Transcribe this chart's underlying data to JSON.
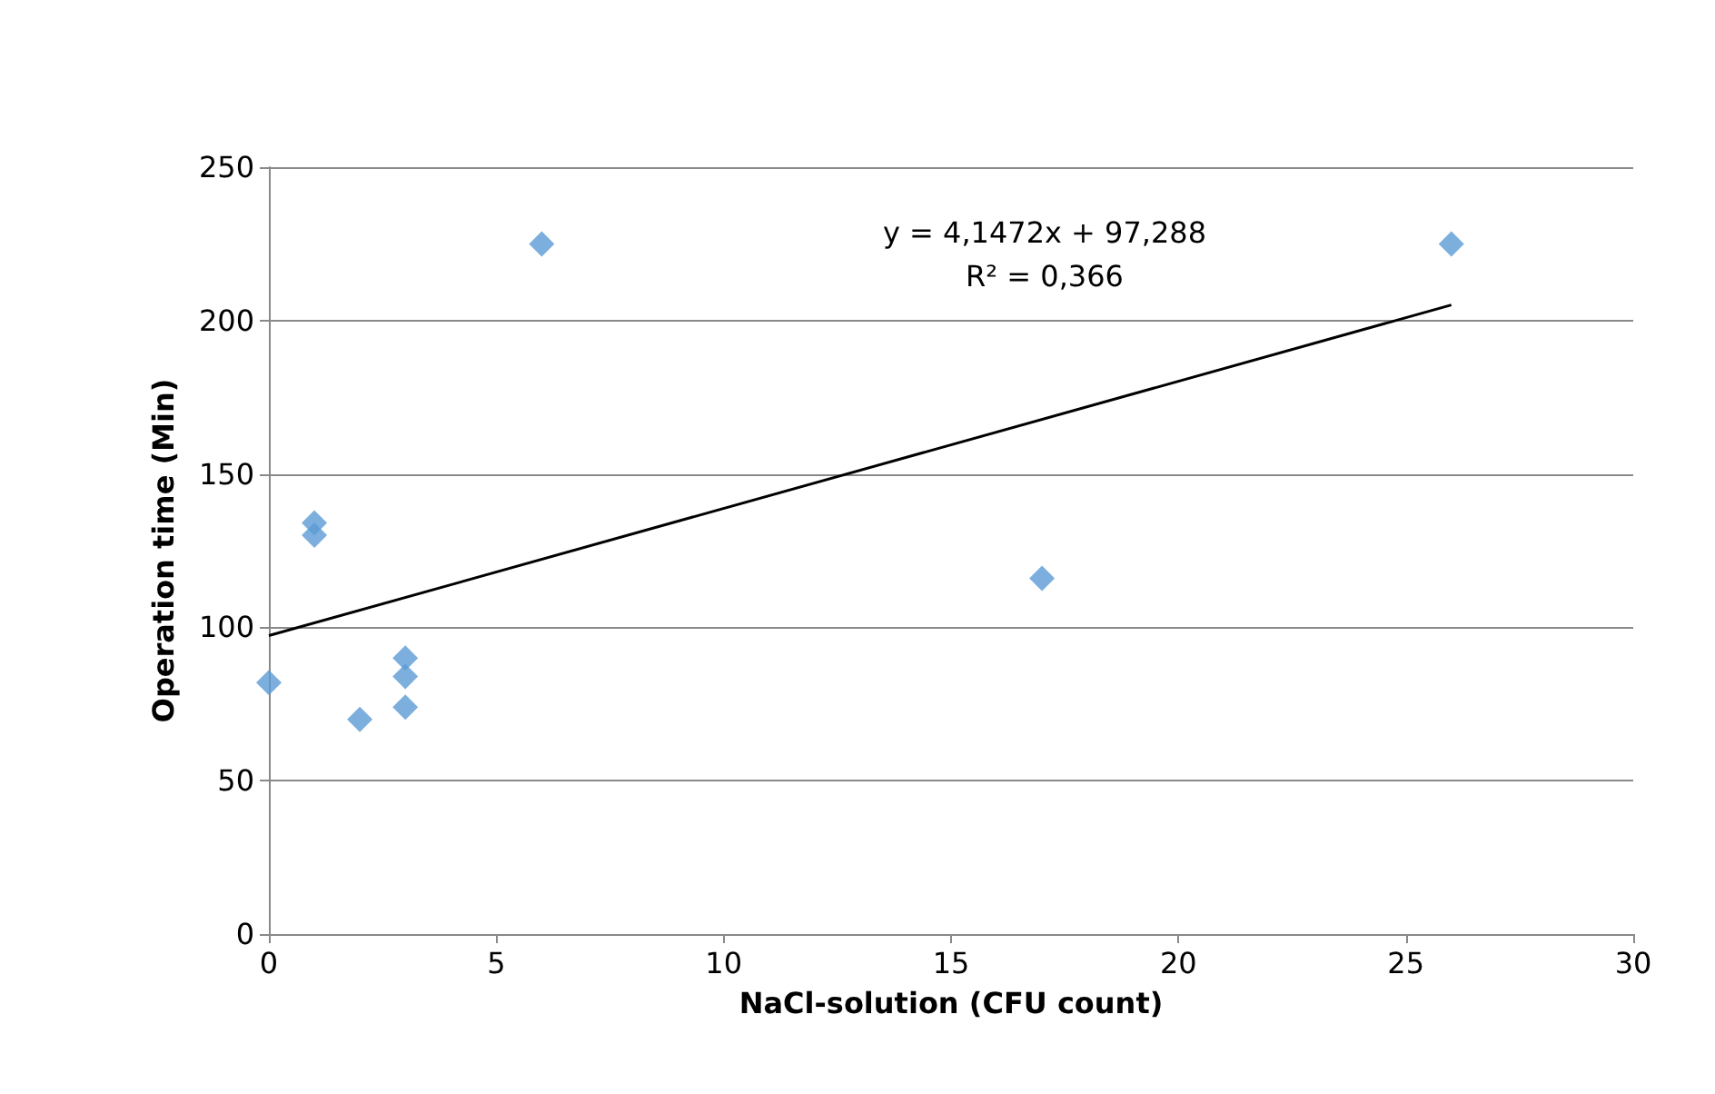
{
  "chart_data": {
    "type": "scatter",
    "xlabel": "NaCl-solution (CFU count)",
    "ylabel": "Operation time (Min)",
    "series": [
      {
        "color": "#5b9bd5",
        "x": [
          0,
          1,
          1,
          2,
          3,
          3,
          3,
          6,
          17,
          26
        ],
        "values": [
          82,
          134,
          130,
          70,
          90,
          84,
          74,
          225,
          116,
          225
        ]
      },
      {
        "type": "line",
        "color": "#000000",
        "marker": "none",
        "x": [
          0,
          26
        ],
        "values": [
          97.3,
          205.1
        ]
      }
    ],
    "annotations": [
      "y = 4,1472x + 97,288",
      "R² = 0,366"
    ],
    "xlim": [
      0,
      30
    ],
    "xticks": [
      0,
      5,
      10,
      15,
      20,
      25,
      30
    ],
    "ylim": [
      0,
      250
    ],
    "yticks": [
      0,
      50,
      100,
      150,
      200,
      250
    ],
    "grid": "y",
    "marker": "diamond"
  }
}
